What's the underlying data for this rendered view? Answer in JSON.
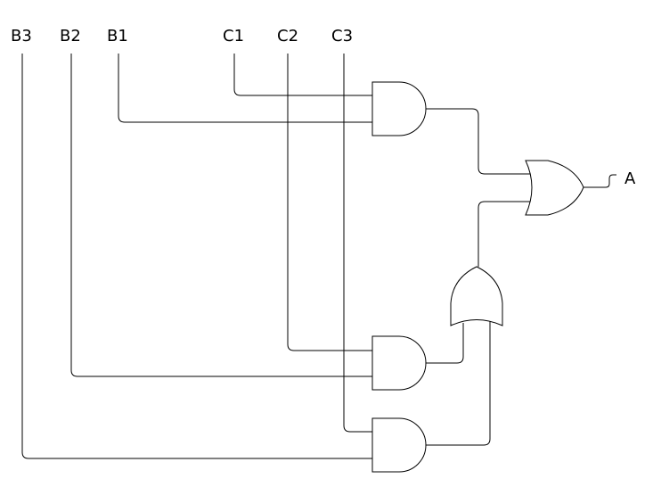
{
  "inputs": {
    "b3": "B3",
    "b2": "B2",
    "b1": "B1",
    "c1": "C1",
    "c2": "C2",
    "c3": "C3"
  },
  "output": {
    "a": "A"
  },
  "gates": {
    "and_top": "AND",
    "and_mid": "AND",
    "and_bottom": "AND",
    "or_lower": "OR",
    "or_final": "OR"
  }
}
